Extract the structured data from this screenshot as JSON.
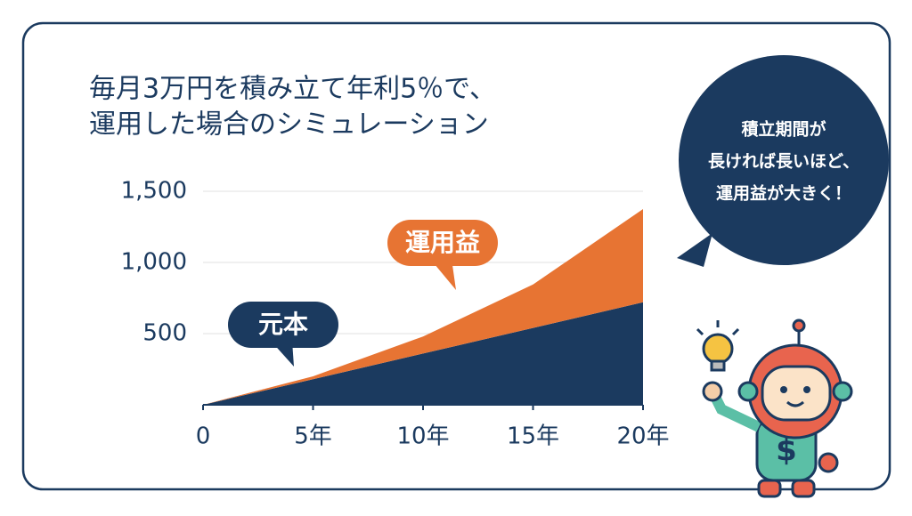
{
  "chart_data": {
    "type": "stacked_area",
    "title": [
      "毎月3万円を積み立て年利5％で、",
      "運用した場合のシミュレーション"
    ],
    "x": [
      0,
      5,
      10,
      15,
      20
    ],
    "series": [
      {
        "name": "元本",
        "color": "#1b3a5f",
        "values": [
          0,
          180,
          360,
          540,
          720
        ]
      },
      {
        "name": "運用益",
        "color": "#e77433",
        "values": [
          0,
          20,
          120,
          305,
          655
        ]
      }
    ],
    "xlim": [
      0,
      20
    ],
    "xticks": [
      0,
      {
        "value": 5,
        "label": "5年"
      },
      {
        "value": 10,
        "label": "10年"
      },
      {
        "value": 15,
        "label": "15年"
      },
      {
        "value": 20,
        "label": "20年"
      }
    ],
    "ylim": [
      0,
      1500
    ],
    "yticks": [
      500,
      {
        "value": 1000,
        "label": "1,000"
      },
      {
        "value": 1500,
        "label": "1,500"
      }
    ],
    "grid": true,
    "annotation": [
      "積立期間が",
      "長ければ長いほど、",
      "運用益が大きく！"
    ]
  }
}
